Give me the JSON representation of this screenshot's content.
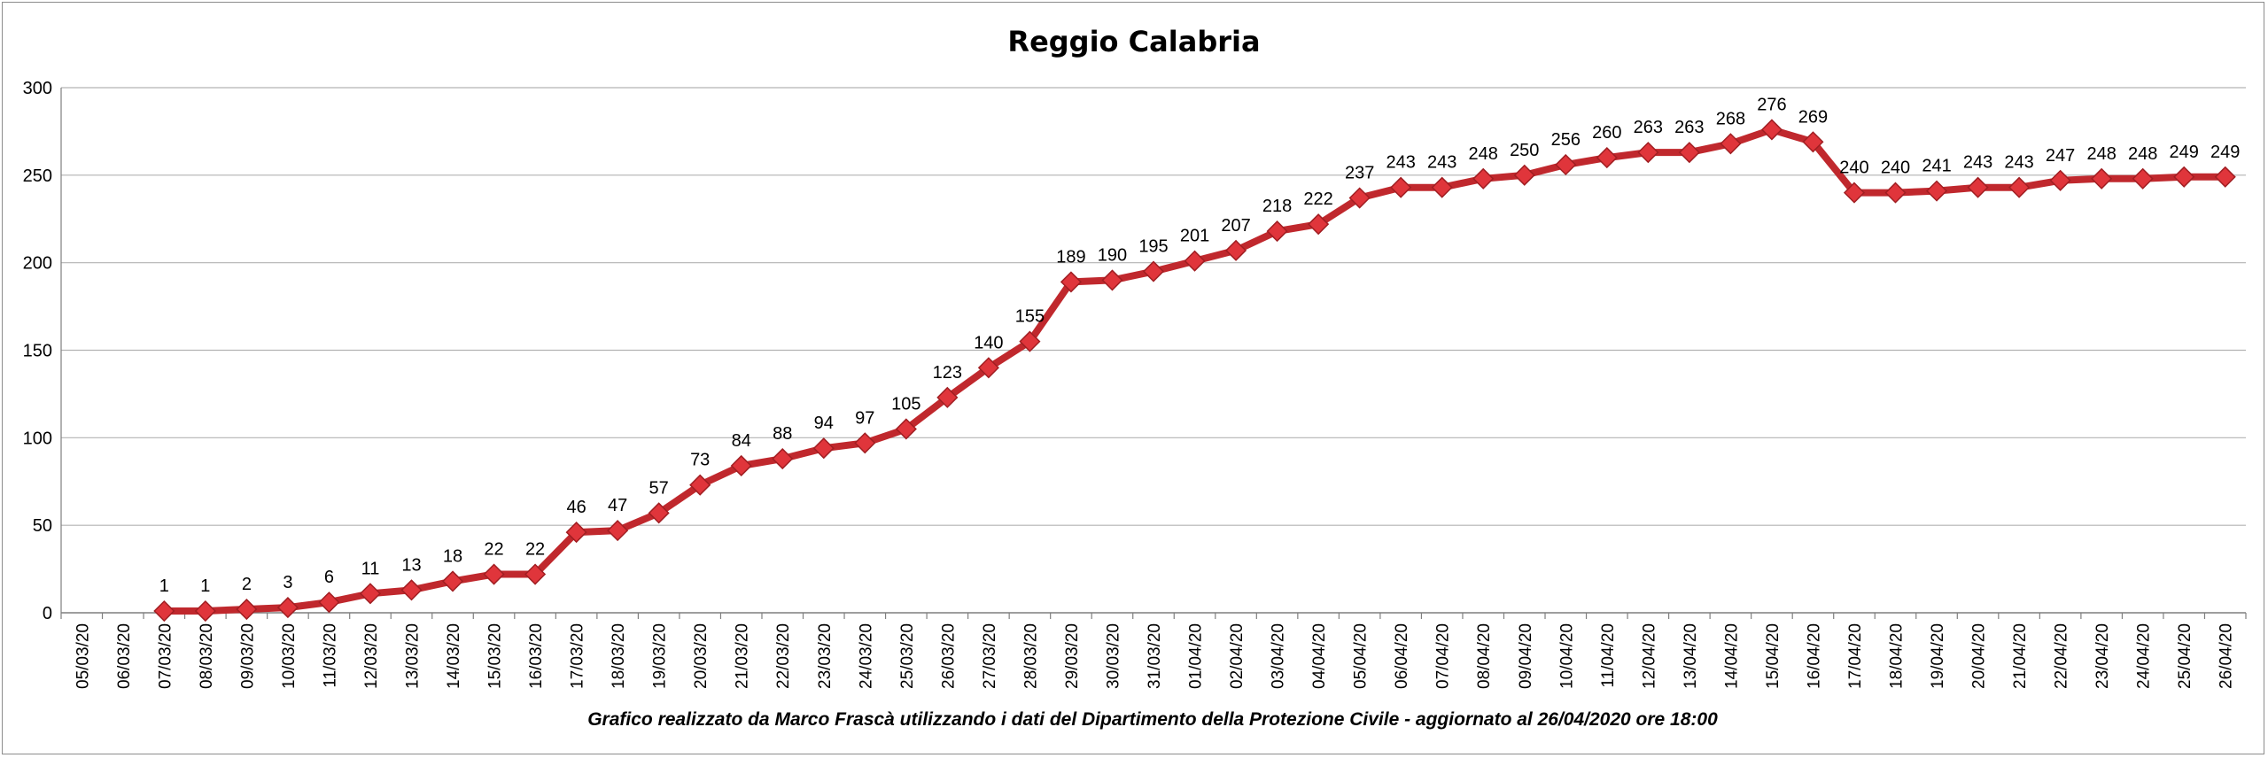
{
  "chart_data": {
    "type": "line",
    "title": "Reggio Calabria",
    "footer_note": "Grafico  realizzato da Marco Frascà  utilizzando i dati del Dipartimento  della Protezione Civile - aggiornato al 26/04/2020 ore 18:00",
    "ylim": [
      0,
      300
    ],
    "yticks": [
      0,
      50,
      100,
      150,
      200,
      250,
      300
    ],
    "grid": true,
    "legend": "none",
    "line_color": "#c0282d",
    "marker_color": "#e0353b",
    "x": [
      "05/03/20",
      "06/03/20",
      "07/03/20",
      "08/03/20",
      "09/03/20",
      "10/03/20",
      "11/03/20",
      "12/03/20",
      "13/03/20",
      "14/03/20",
      "15/03/20",
      "16/03/20",
      "17/03/20",
      "18/03/20",
      "19/03/20",
      "20/03/20",
      "21/03/20",
      "22/03/20",
      "23/03/20",
      "24/03/20",
      "25/03/20",
      "26/03/20",
      "27/03/20",
      "28/03/20",
      "29/03/20",
      "30/03/20",
      "31/03/20",
      "01/04/20",
      "02/04/20",
      "03/04/20",
      "04/04/20",
      "05/04/20",
      "06/04/20",
      "07/04/20",
      "08/04/20",
      "09/04/20",
      "10/04/20",
      "11/04/20",
      "12/04/20",
      "13/04/20",
      "14/04/20",
      "15/04/20",
      "16/04/20",
      "17/04/20",
      "18/04/20",
      "19/04/20",
      "20/04/20",
      "21/04/20",
      "22/04/20",
      "23/04/20",
      "24/04/20",
      "25/04/20",
      "26/04/20"
    ],
    "series": [
      {
        "values": [
          null,
          null,
          1,
          1,
          2,
          3,
          6,
          11,
          13,
          18,
          22,
          22,
          46,
          47,
          57,
          73,
          84,
          88,
          94,
          97,
          105,
          123,
          140,
          155,
          189,
          190,
          195,
          201,
          207,
          218,
          222,
          237,
          243,
          243,
          248,
          250,
          256,
          260,
          263,
          263,
          268,
          276,
          269,
          240,
          240,
          241,
          243,
          243,
          247,
          248,
          248,
          249,
          249
        ]
      }
    ]
  }
}
